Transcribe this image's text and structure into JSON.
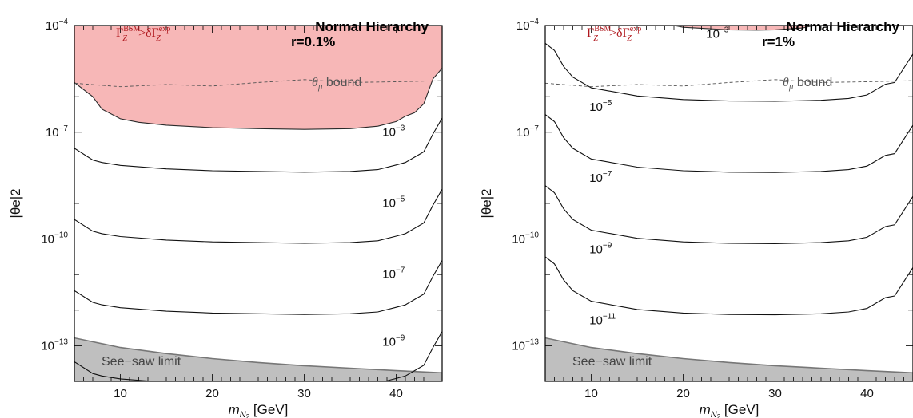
{
  "chart_data": [
    {
      "type": "line",
      "title": "Normal Hierarchy",
      "subtitle": "r=0.1%",
      "xlabel": "m",
      "xlabel_sub": "N",
      "xlabel_subsub": "2",
      "xlabel_unit": " [GeV]",
      "ylabel": "|θe|2",
      "xlim": [
        5,
        45
      ],
      "ylim_log10": [
        -14,
        -4
      ],
      "log_y": true,
      "grid": false,
      "x_ticks": [
        10,
        20,
        30,
        40
      ],
      "x_tick_labels": [
        "10",
        "20",
        "30",
        "40"
      ],
      "y_ticks_log10": [
        -4,
        -7,
        -10,
        -13
      ],
      "y_tick_base": "10",
      "y_tick_exps": [
        "−4",
        "−7",
        "−10",
        "−13"
      ],
      "excluded_region": {
        "label_main": "Γ",
        "label_sup1": "BSM",
        "label_sub1": "Z",
        "label_mid": ">δΓ",
        "label_sup2": "exp",
        "label_sub2": "Z",
        "color": "#f7b7b7",
        "edge_color": "#2b2b2b",
        "label_color": "#b0181e",
        "boundary": {
          "x": [
            5,
            7,
            8,
            10,
            12,
            15,
            20,
            25,
            30,
            35,
            38,
            40,
            41,
            42,
            43,
            44,
            45
          ],
          "log10y": [
            -5.6,
            -6,
            -6.35,
            -6.62,
            -6.72,
            -6.8,
            -6.87,
            -6.9,
            -6.92,
            -6.9,
            -6.83,
            -6.7,
            -6.55,
            -6.45,
            -6.2,
            -5.5,
            -5.2
          ]
        }
      },
      "theta_mu_bound": {
        "label_sym": "θ",
        "label_sub": "μ",
        "label_rest": " bound",
        "color": "#555555",
        "x": [
          5,
          10,
          15,
          20,
          25,
          30,
          35,
          40,
          45
        ],
        "log10y": [
          -5.62,
          -5.72,
          -5.66,
          -5.7,
          -5.6,
          -5.52,
          -5.6,
          -5.58,
          -5.55
        ]
      },
      "seesaw": {
        "label": "See−saw limit",
        "color": "#bfbfbf",
        "edge_color": "#777777",
        "x": [
          5,
          10,
          15,
          20,
          25,
          30,
          35,
          40,
          45
        ],
        "log10y": [
          -12.78,
          -13.05,
          -13.22,
          -13.36,
          -13.47,
          -13.56,
          -13.63,
          -13.7,
          -13.76
        ]
      },
      "series": [
        {
          "label_base": "10",
          "label_exp": "−3",
          "label_x": 38.5,
          "label_log10y": -7.1,
          "x": [
            5,
            7,
            8,
            10,
            15,
            20,
            25,
            30,
            35,
            38,
            40,
            41,
            42,
            43,
            44,
            45
          ],
          "log10y": [
            -7.45,
            -7.78,
            -7.85,
            -7.93,
            -8.03,
            -8.08,
            -8.1,
            -8.12,
            -8.1,
            -8.05,
            -7.92,
            -7.85,
            -7.7,
            -7.55,
            -7.05,
            -6.6
          ]
        },
        {
          "label_base": "10",
          "label_exp": "−5",
          "label_x": 38.5,
          "label_log10y": -9.1,
          "x": [
            5,
            7,
            8,
            10,
            15,
            20,
            25,
            30,
            35,
            38,
            40,
            41,
            42,
            43,
            44,
            45
          ],
          "log10y": [
            -9.45,
            -9.78,
            -9.85,
            -9.93,
            -10.03,
            -10.08,
            -10.1,
            -10.12,
            -10.1,
            -10.05,
            -9.92,
            -9.85,
            -9.7,
            -9.55,
            -9.05,
            -8.6
          ]
        },
        {
          "label_base": "10",
          "label_exp": "−7",
          "label_x": 38.5,
          "label_log10y": -11.1,
          "x": [
            5,
            7,
            8,
            10,
            15,
            20,
            25,
            30,
            35,
            38,
            40,
            41,
            42,
            43,
            44,
            45
          ],
          "log10y": [
            -11.45,
            -11.78,
            -11.85,
            -11.93,
            -12.03,
            -12.08,
            -12.1,
            -12.12,
            -12.1,
            -12.05,
            -11.92,
            -11.85,
            -11.7,
            -11.55,
            -11.05,
            -10.6
          ]
        },
        {
          "label_base": "10",
          "label_exp": "−9",
          "label_x": 38.5,
          "label_log10y": -13.0,
          "x": [
            5,
            7,
            8,
            10,
            15,
            20,
            25,
            30,
            35,
            38,
            40,
            41,
            42,
            43,
            44,
            45
          ],
          "log10y": [
            -13.45,
            -13.78,
            -13.85,
            -13.93,
            -14.03,
            -14.08,
            -14.1,
            -14.12,
            -14.1,
            -14.05,
            -13.92,
            -13.85,
            -13.7,
            -13.55,
            -13.05,
            -12.6
          ]
        }
      ]
    },
    {
      "type": "line",
      "title": "Normal Hierarchy",
      "subtitle": "r=1%",
      "xlabel": "m",
      "xlabel_sub": "N",
      "xlabel_subsub": "2",
      "xlabel_unit": " [GeV]",
      "ylabel": "|θe|2",
      "xlim": [
        5,
        45
      ],
      "ylim_log10": [
        -14,
        -4
      ],
      "log_y": true,
      "grid": false,
      "x_ticks": [
        10,
        20,
        30,
        40
      ],
      "x_tick_labels": [
        "10",
        "20",
        "30",
        "40"
      ],
      "y_ticks_log10": [
        -4,
        -7,
        -10,
        -13
      ],
      "y_tick_base": "10",
      "y_tick_exps": [
        "−4",
        "−7",
        "−10",
        "−13"
      ],
      "excluded_region": {
        "label_main": "Γ",
        "label_sup1": "BSM",
        "label_sub1": "Z",
        "label_mid": ">δΓ",
        "label_sup2": "exp",
        "label_sub2": "Z",
        "color": "#f7b7b7",
        "edge_color": "#2b2b2b",
        "label_color": "#b0181e",
        "boundary": {
          "x": [
            15,
            17,
            20,
            25,
            28,
            30,
            33,
            36
          ],
          "log10y": [
            -3.8,
            -3.9,
            -4.05,
            -4.12,
            -4.13,
            -4.12,
            -4.07,
            -3.9
          ]
        }
      },
      "theta_mu_bound": {
        "label_sym": "θ",
        "label_sub": "μ",
        "label_rest": " bound",
        "color": "#555555",
        "x": [
          5,
          10,
          15,
          20,
          25,
          30,
          35,
          40,
          45
        ],
        "log10y": [
          -5.62,
          -5.72,
          -5.66,
          -5.7,
          -5.6,
          -5.52,
          -5.6,
          -5.58,
          -5.55
        ]
      },
      "seesaw": {
        "label": "See−saw limit",
        "color": "#bfbfbf",
        "edge_color": "#777777",
        "x": [
          5,
          10,
          15,
          20,
          25,
          30,
          35,
          40,
          45
        ],
        "log10y": [
          -12.78,
          -13.05,
          -13.22,
          -13.36,
          -13.47,
          -13.56,
          -13.63,
          -13.7,
          -13.76
        ]
      },
      "series": [
        {
          "label_base": "10",
          "label_exp": "−3",
          "label_x": 22.5,
          "label_log10y": -4.35,
          "x": [],
          "log10y": []
        },
        {
          "label_base": "10",
          "label_exp": "−5",
          "label_x": 9.8,
          "label_log10y": -6.4,
          "x": [
            5,
            6,
            7,
            8,
            10,
            15,
            20,
            25,
            30,
            35,
            38,
            40,
            41,
            42,
            43,
            44,
            45
          ],
          "log10y": [
            -4.5,
            -4.7,
            -5.15,
            -5.45,
            -5.75,
            -5.98,
            -6.08,
            -6.12,
            -6.13,
            -6.1,
            -6.05,
            -5.95,
            -5.8,
            -5.65,
            -5.6,
            -5.2,
            -4.8
          ]
        },
        {
          "label_base": "10",
          "label_exp": "−7",
          "label_x": 9.8,
          "label_log10y": -8.4,
          "x": [
            5,
            6,
            7,
            8,
            10,
            15,
            20,
            25,
            30,
            35,
            38,
            40,
            41,
            42,
            43,
            44,
            45
          ],
          "log10y": [
            -6.5,
            -6.7,
            -7.15,
            -7.45,
            -7.75,
            -7.98,
            -8.08,
            -8.12,
            -8.13,
            -8.1,
            -8.05,
            -7.95,
            -7.8,
            -7.65,
            -7.6,
            -7.2,
            -6.8
          ]
        },
        {
          "label_base": "10",
          "label_exp": "−9",
          "label_x": 9.8,
          "label_log10y": -10.4,
          "x": [
            5,
            6,
            7,
            8,
            10,
            15,
            20,
            25,
            30,
            35,
            38,
            40,
            41,
            42,
            43,
            44,
            45
          ],
          "log10y": [
            -8.5,
            -8.7,
            -9.15,
            -9.45,
            -9.75,
            -9.98,
            -10.08,
            -10.12,
            -10.13,
            -10.1,
            -10.05,
            -9.95,
            -9.8,
            -9.65,
            -9.6,
            -9.2,
            -8.8
          ]
        },
        {
          "label_base": "10",
          "label_exp": "−11",
          "label_x": 9.8,
          "label_log10y": -12.4,
          "x": [
            5,
            6,
            7,
            8,
            10,
            15,
            20,
            25,
            30,
            35,
            38,
            40,
            41,
            42,
            43,
            44,
            45
          ],
          "log10y": [
            -10.5,
            -10.7,
            -11.15,
            -11.45,
            -11.75,
            -11.98,
            -12.08,
            -12.12,
            -12.13,
            -12.1,
            -12.05,
            -11.95,
            -11.8,
            -11.65,
            -11.6,
            -11.2,
            -10.8
          ]
        }
      ]
    }
  ]
}
